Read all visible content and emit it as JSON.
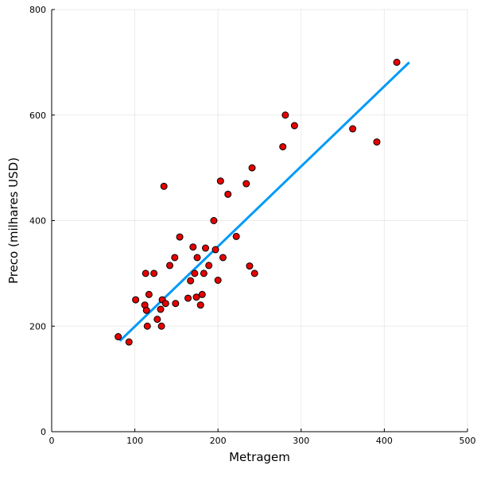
{
  "chart_data": {
    "type": "scatter",
    "title": "",
    "xlabel": "Metragem",
    "ylabel": "Preco (milhares USD)",
    "xlim": [
      0,
      500
    ],
    "ylim": [
      0,
      800
    ],
    "xticks": [
      0,
      100,
      200,
      300,
      400,
      500
    ],
    "yticks": [
      0,
      200,
      400,
      600,
      800
    ],
    "grid": true,
    "legend": "none",
    "colors": {
      "points": "#e60000",
      "point_stroke": "#000000",
      "fit_line": "#009af9",
      "axis": "#000000",
      "background": "#ffffff"
    },
    "series": [
      {
        "kind": "scatter",
        "points": [
          [
            80,
            180
          ],
          [
            93,
            170
          ],
          [
            101,
            250
          ],
          [
            112,
            240
          ],
          [
            113,
            300
          ],
          [
            114,
            230
          ],
          [
            115,
            200
          ],
          [
            117,
            260
          ],
          [
            123,
            300
          ],
          [
            127,
            213
          ],
          [
            131,
            232
          ],
          [
            132,
            200
          ],
          [
            133,
            250
          ],
          [
            135,
            465
          ],
          [
            137,
            243
          ],
          [
            142,
            315
          ],
          [
            148,
            330
          ],
          [
            149,
            243
          ],
          [
            154,
            369
          ],
          [
            164,
            253
          ],
          [
            167,
            286
          ],
          [
            170,
            350
          ],
          [
            172,
            300
          ],
          [
            174,
            255
          ],
          [
            175,
            330
          ],
          [
            179,
            240
          ],
          [
            181,
            260
          ],
          [
            183,
            300
          ],
          [
            185,
            348
          ],
          [
            189,
            315
          ],
          [
            195,
            400
          ],
          [
            197,
            345
          ],
          [
            200,
            287
          ],
          [
            203,
            475
          ],
          [
            206,
            330
          ],
          [
            212,
            450
          ],
          [
            222,
            370
          ],
          [
            234,
            470
          ],
          [
            238,
            314
          ],
          [
            241,
            500
          ],
          [
            244,
            300
          ],
          [
            278,
            540
          ],
          [
            281,
            600
          ],
          [
            292,
            580
          ],
          [
            362,
            574
          ],
          [
            391,
            549
          ],
          [
            415,
            700
          ]
        ]
      },
      {
        "kind": "line",
        "points": [
          [
            82,
            172
          ],
          [
            430,
            700
          ]
        ]
      }
    ]
  }
}
